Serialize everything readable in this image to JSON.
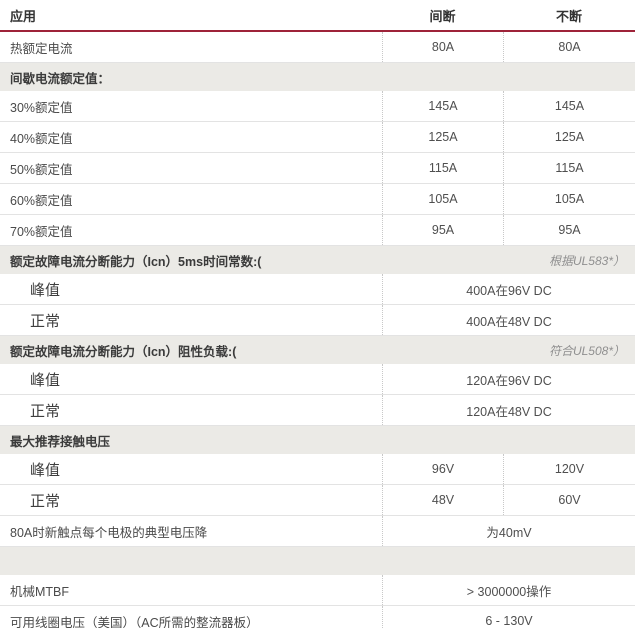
{
  "colors": {
    "accent_line": "#9e2339",
    "section_background": "#ebeae6",
    "header_text": "#333333",
    "body_text": "#4a4a4a",
    "note_text": "#8f8f8f"
  },
  "table": {
    "header": {
      "col1": "应用",
      "col2": "间断",
      "col3": "不断"
    },
    "rows": [
      {
        "type": "data",
        "label": "热额定电流",
        "v1": "80A",
        "v2": "80A"
      },
      {
        "type": "section",
        "label": "间歇电流额定值：",
        "note": ""
      },
      {
        "type": "data",
        "label": "30%额定值",
        "v1": "145A",
        "v2": "145A"
      },
      {
        "type": "data",
        "label": "40%额定值",
        "v1": "125A",
        "v2": "125A"
      },
      {
        "type": "data",
        "label": "50%额定值",
        "v1": "115A",
        "v2": "115A"
      },
      {
        "type": "data",
        "label": "60%额定值",
        "v1": "105A",
        "v2": "105A"
      },
      {
        "type": "data",
        "label": "70%额定值",
        "v1": "95A",
        "v2": "95A"
      },
      {
        "type": "section",
        "label": "额定故障电流分断能力（Icn）5ms时间常数:(",
        "note": "根据UL583*）"
      },
      {
        "type": "sub-span",
        "label": "峰值",
        "value": "400A在96V DC"
      },
      {
        "type": "sub-span",
        "label": "正常",
        "value": "400A在48V DC"
      },
      {
        "type": "section",
        "label": "额定故障电流分断能力（Icn）阻性负载:(",
        "note": "符合UL508*）"
      },
      {
        "type": "sub-span",
        "label": "峰值",
        "value": "120A在96V DC"
      },
      {
        "type": "sub-span",
        "label": "正常",
        "value": "120A在48V DC"
      },
      {
        "type": "section",
        "label": "最大推荐接触电压",
        "note": ""
      },
      {
        "type": "sub-data",
        "label": "峰值",
        "v1": "96V",
        "v2": "120V"
      },
      {
        "type": "sub-data",
        "label": "正常",
        "v1": "48V",
        "v2": "60V"
      },
      {
        "type": "span",
        "label": "80A时新触点每个电极的典型电压降",
        "value": "为40mV"
      },
      {
        "type": "section-empty",
        "label": "",
        "note": ""
      },
      {
        "type": "span",
        "label": "机械MTBF",
        "value": "> 3000000操作"
      },
      {
        "type": "span",
        "label": "可用线圈电压（美国）（AC所需的整流器板）",
        "value": "6 - 130V"
      }
    ]
  }
}
